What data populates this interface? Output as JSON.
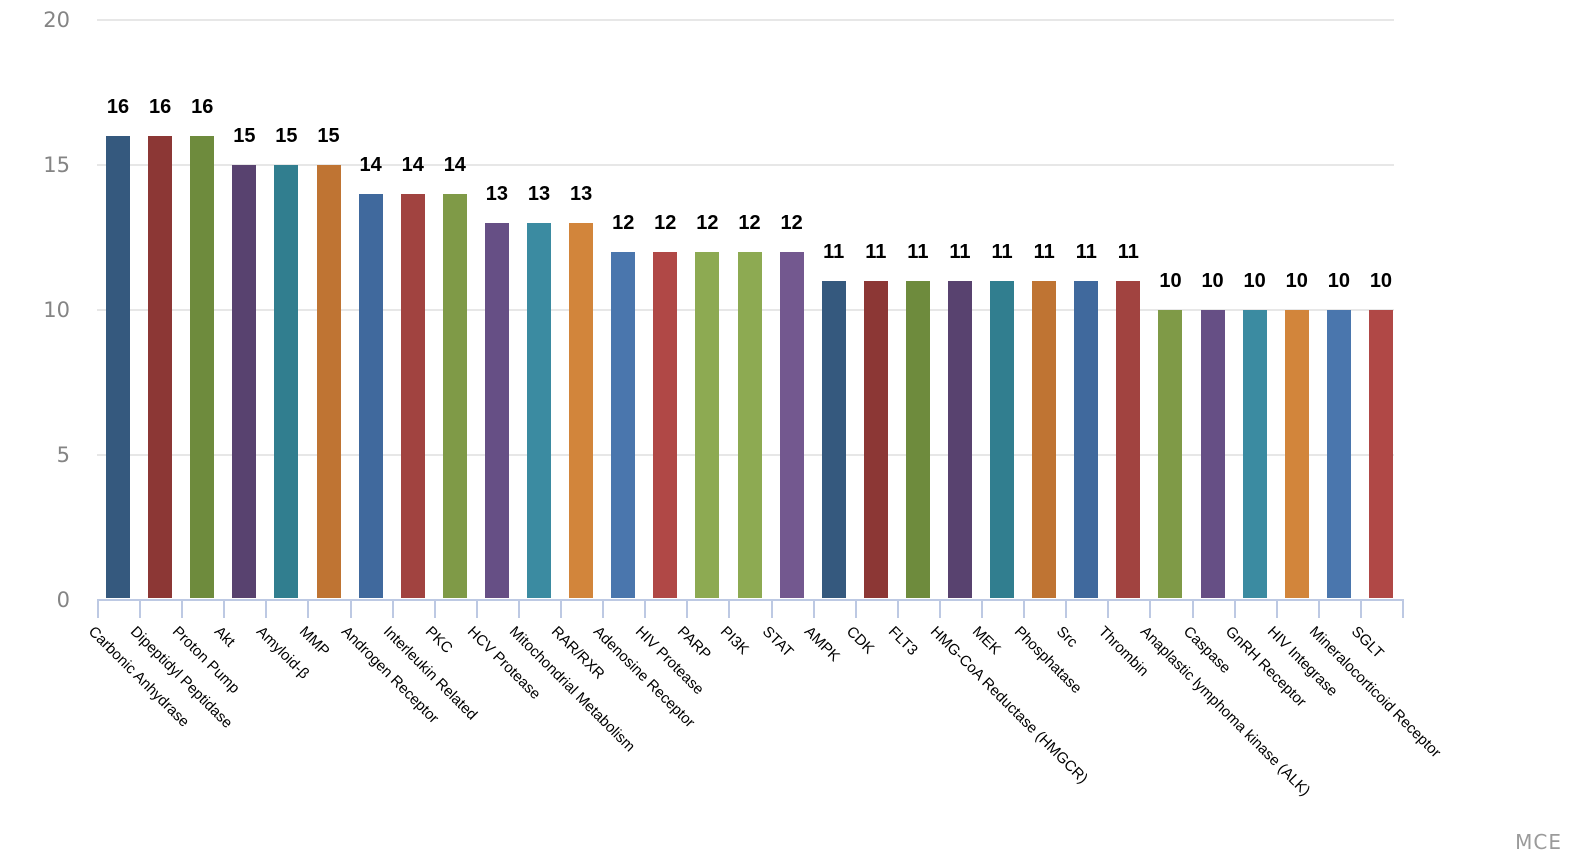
{
  "watermark": "MCE",
  "chart_data": {
    "type": "bar",
    "title": "",
    "xlabel": "",
    "ylabel": "",
    "ylim": [
      0,
      20
    ],
    "yticks": [
      0,
      5,
      10,
      15,
      20
    ],
    "grid": true,
    "legend": false,
    "value_labels": true,
    "categories": [
      "Carbonic Anhydrase",
      "Dipeptidyl Peptidase",
      "Proton Pump",
      "Akt",
      "Amyloid-β",
      "MMP",
      "Androgen Receptor",
      "Interleukin Related",
      "PKC",
      "HCV Protease",
      "Mitochondrial Metabolism",
      "RAR/RXR",
      "Adenosine Receptor",
      "HIV Protease",
      "PARP",
      "PI3K",
      "STAT",
      "AMPK",
      "CDK",
      "FLT3",
      "HMG-CoA Reductase (HMGCR)",
      "MEK",
      "Phosphatase",
      "Src",
      "Thrombin",
      "Anaplastic lymphoma kinase (ALK)",
      "Caspase",
      "GnRH Receptor",
      "HIV Integrase",
      "Mineralocorticoid Receptor",
      "SGLT"
    ],
    "values": [
      16,
      16,
      16,
      15,
      15,
      15,
      14,
      14,
      14,
      13,
      13,
      13,
      12,
      12,
      12,
      12,
      12,
      11,
      11,
      11,
      11,
      11,
      11,
      11,
      11,
      10,
      10,
      10,
      10,
      10,
      10
    ],
    "bar_colors": [
      "#35597E",
      "#8C3735",
      "#6E8B3D",
      "#58426F",
      "#317E8F",
      "#BF7433",
      "#40699D",
      "#A14340",
      "#7F9A47",
      "#664F85",
      "#3B8BA1",
      "#D2853B",
      "#4A76AD",
      "#B04846",
      "#8DAA52",
      "#8DAA52",
      "#73588F",
      "#35597E",
      "#8C3735",
      "#6E8B3D",
      "#58426F",
      "#317E8F",
      "#BF7433",
      "#40699D",
      "#A14340",
      "#7F9A47",
      "#664F85",
      "#3B8BA1",
      "#D2853B",
      "#4A76AD",
      "#B04846"
    ],
    "grid_color": "#e7e7e7",
    "axis_color": "#bdc9e3",
    "value_label_color": "#000000",
    "tick_label_color": "#848484"
  }
}
